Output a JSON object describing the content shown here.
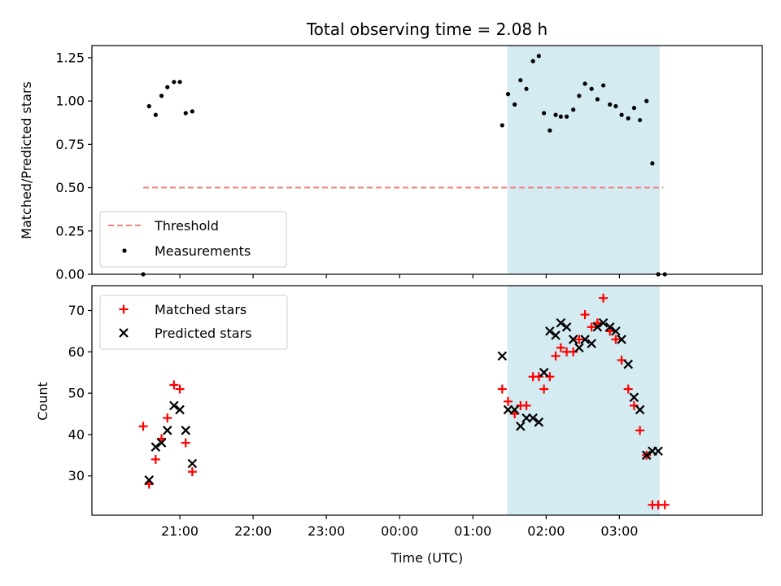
{
  "chart_data": {
    "type": "scatter",
    "title": "Total observing time = 2.08 h",
    "xlabel": "Time (UTC)",
    "x_tick_labels": [
      "21:00",
      "22:00",
      "23:00",
      "00:00",
      "01:00",
      "02:00",
      "03:00"
    ],
    "x_tick_hours": [
      21,
      22,
      23,
      24,
      25,
      26,
      27
    ],
    "xlim_hours": [
      19.8,
      28.95
    ],
    "shaded_interval_hours": [
      25.47,
      27.55
    ],
    "shade_color": "#d4ebf2",
    "panels": [
      {
        "id": "ratio",
        "ylabel": "Matched/Predicted stars",
        "ylim": [
          0,
          1.32
        ],
        "y_ticks": [
          "0.00",
          "0.25",
          "0.50",
          "0.75",
          "1.00",
          "1.25"
        ],
        "y_tick_values": [
          0,
          0.25,
          0.5,
          0.75,
          1.0,
          1.25
        ],
        "legend": [
          "Threshold",
          "Measurements"
        ],
        "threshold": {
          "name": "Threshold",
          "value": 0.5,
          "x_start": 20.5,
          "x_end": 27.6,
          "color": "#f08080"
        },
        "measurements": {
          "name": "Measurements",
          "color": "#000000",
          "x": [
            20.5,
            20.58,
            20.67,
            20.75,
            20.83,
            20.92,
            21.0,
            21.08,
            21.17,
            25.4,
            25.48,
            25.57,
            25.65,
            25.73,
            25.82,
            25.9,
            25.97,
            26.05,
            26.13,
            26.2,
            26.28,
            26.37,
            26.45,
            26.53,
            26.62,
            26.7,
            26.78,
            26.87,
            26.95,
            27.03,
            27.12,
            27.2,
            27.28,
            27.37,
            27.45,
            27.53,
            27.62
          ],
          "y": [
            0.0,
            0.97,
            0.92,
            1.03,
            1.08,
            1.11,
            1.11,
            0.93,
            0.94,
            0.86,
            1.04,
            0.98,
            1.12,
            1.07,
            1.23,
            1.26,
            0.93,
            0.83,
            0.92,
            0.91,
            0.91,
            0.95,
            1.03,
            1.1,
            1.07,
            1.01,
            1.09,
            0.98,
            0.97,
            0.92,
            0.9,
            0.96,
            0.89,
            1.0,
            0.64,
            0.0,
            0.0
          ]
        }
      },
      {
        "id": "count",
        "ylabel": "Count",
        "ylim": [
          20.5,
          76
        ],
        "y_ticks": [
          "30",
          "40",
          "50",
          "60",
          "70"
        ],
        "y_tick_values": [
          30,
          40,
          50,
          60,
          70
        ],
        "legend": [
          "Matched stars",
          "Predicted stars"
        ],
        "series": [
          {
            "name": "Matched stars",
            "marker": "+",
            "color": "#ff0000",
            "x": [
              20.5,
              20.58,
              20.67,
              20.75,
              20.83,
              20.92,
              21.0,
              21.08,
              21.17,
              25.4,
              25.48,
              25.57,
              25.65,
              25.73,
              25.82,
              25.9,
              25.97,
              26.05,
              26.13,
              26.2,
              26.28,
              26.37,
              26.45,
              26.53,
              26.62,
              26.7,
              26.78,
              26.87,
              26.95,
              27.03,
              27.12,
              27.2,
              27.28,
              27.37,
              27.45,
              27.53,
              27.62
            ],
            "y": [
              42,
              28,
              34,
              39,
              44,
              52,
              51,
              38,
              31,
              51,
              48,
              45,
              47,
              47,
              54,
              54,
              51,
              54,
              59,
              61,
              60,
              60,
              63,
              69,
              66,
              67,
              73,
              65,
              63,
              58,
              51,
              47,
              41,
              35,
              23,
              23,
              23
            ]
          },
          {
            "name": "Predicted stars",
            "marker": "x",
            "color": "#000000",
            "x": [
              20.58,
              20.67,
              20.75,
              20.83,
              20.92,
              21.0,
              21.08,
              21.17,
              25.4,
              25.48,
              25.57,
              25.65,
              25.73,
              25.82,
              25.9,
              25.97,
              26.05,
              26.13,
              26.2,
              26.28,
              26.37,
              26.45,
              26.53,
              26.62,
              26.7,
              26.78,
              26.87,
              26.95,
              27.03,
              27.12,
              27.2,
              27.28,
              27.37,
              27.45,
              27.53
            ],
            "y": [
              29,
              37,
              38,
              41,
              47,
              46,
              41,
              33,
              59,
              46,
              46,
              42,
              44,
              44,
              43,
              55,
              65,
              64,
              67,
              66,
              63,
              61,
              63,
              62,
              66,
              67,
              66,
              65,
              63,
              57,
              49,
              46,
              35,
              36,
              36
            ]
          }
        ]
      }
    ]
  }
}
